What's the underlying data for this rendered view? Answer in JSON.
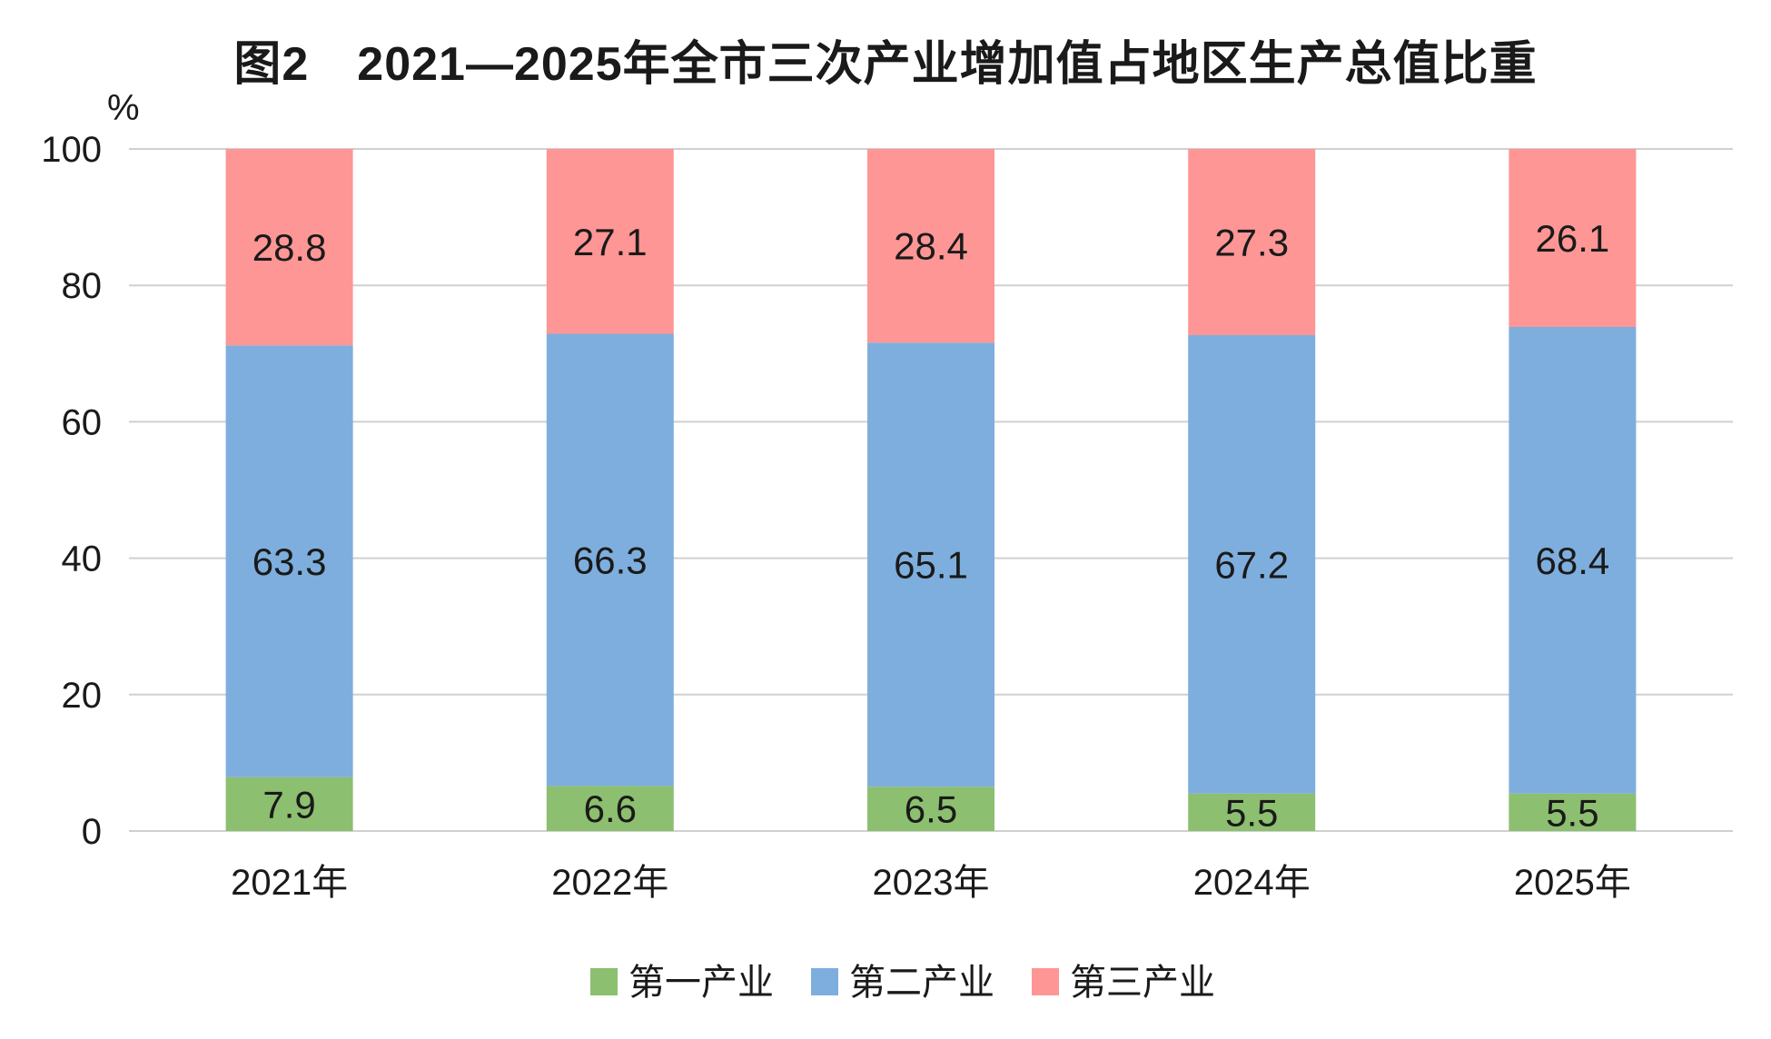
{
  "chart_data": {
    "type": "bar",
    "stacked": true,
    "title": "图2　2021—2025年全市三次产业增加值占地区生产总值比重",
    "ylabel": "%",
    "xlabel": "",
    "ylim": [
      0,
      100
    ],
    "yticks": [
      0,
      20,
      40,
      60,
      80,
      100
    ],
    "grid": true,
    "legend": "bottom-center",
    "categories": [
      "2021年",
      "2022年",
      "2023年",
      "2024年",
      "2025年"
    ],
    "series": [
      {
        "name": "第一产业",
        "color": "#8cbf6f",
        "values": [
          7.9,
          6.6,
          6.5,
          5.5,
          5.5
        ]
      },
      {
        "name": "第二产业",
        "color": "#7eaedd",
        "values": [
          63.3,
          66.3,
          65.1,
          67.2,
          68.4
        ]
      },
      {
        "name": "第三产业",
        "color": "#fd9695",
        "values": [
          28.8,
          27.1,
          28.4,
          27.3,
          26.1
        ]
      }
    ]
  }
}
